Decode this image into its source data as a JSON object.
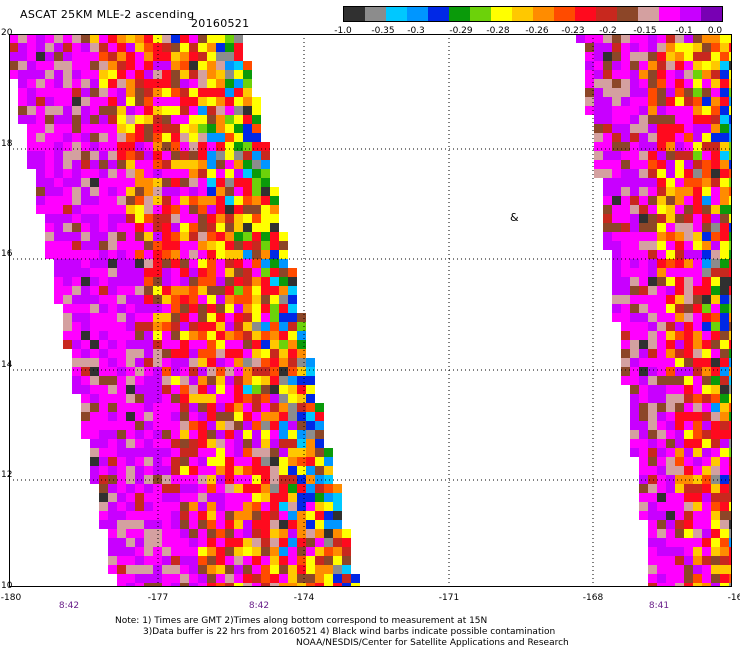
{
  "header": {
    "title": "ASCAT 25KM MLE-2 ascending",
    "date": "20160521"
  },
  "colorbar": {
    "colors": [
      "#303030",
      "#8c8c8c",
      "#00c8ff",
      "#0096ff",
      "#0028e6",
      "#0a9a0a",
      "#6cd20a",
      "#ffff00",
      "#ffc800",
      "#ff8c00",
      "#ff4b00",
      "#ff0a1e",
      "#c8281e",
      "#8c4628",
      "#d4a0a0",
      "#ff00ff",
      "#c800ff",
      "#7800b4"
    ],
    "tick_labels": [
      "-1.0",
      "-0.35",
      "-0.3",
      "-0.29",
      "-0.28",
      "-0.26",
      "-0.23",
      "-0.2",
      "-0.15",
      "-0.1",
      "0.0"
    ]
  },
  "map": {
    "lon_labels": [
      "-180",
      "-177",
      "-174",
      "-171",
      "-168",
      "-16"
    ],
    "lat_labels": [
      "20",
      "18",
      "16",
      "14",
      "12",
      "10"
    ],
    "time_labels": [
      "8:42",
      "8:42",
      "8:41"
    ],
    "contamination_marker": "&"
  },
  "notes": {
    "line1": "Note: 1) Times are GMT 2)Times along bottom correspond to measurement at 15N",
    "line2": "3)Data buffer is 22 hrs from 20160521 4) Black wind barbs indicate possible contamination",
    "line3": "NOAA/NESDIS/Center for Satellite Applications and Research"
  }
}
